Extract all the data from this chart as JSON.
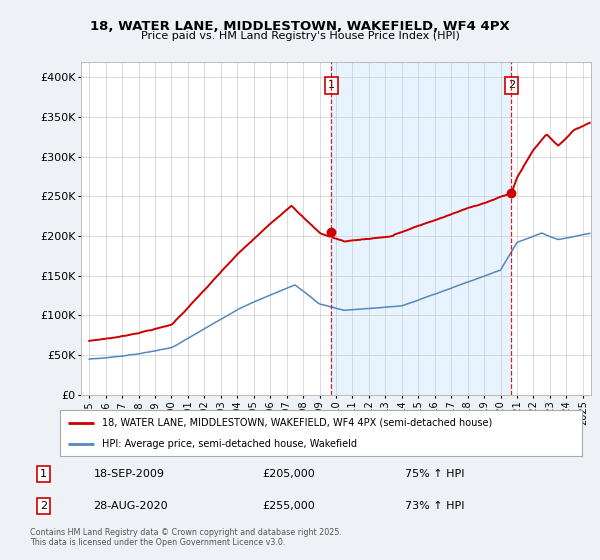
{
  "title_line1": "18, WATER LANE, MIDDLESTOWN, WAKEFIELD, WF4 4PX",
  "title_line2": "Price paid vs. HM Land Registry's House Price Index (HPI)",
  "xlim_start": 1994.5,
  "xlim_end": 2025.5,
  "ylim": [
    0,
    420000
  ],
  "yticks": [
    0,
    50000,
    100000,
    150000,
    200000,
    250000,
    300000,
    350000,
    400000
  ],
  "ytick_labels": [
    "£0",
    "£50K",
    "£100K",
    "£150K",
    "£200K",
    "£250K",
    "£300K",
    "£350K",
    "£400K"
  ],
  "xticks": [
    1995,
    1996,
    1997,
    1998,
    1999,
    2000,
    2001,
    2002,
    2003,
    2004,
    2005,
    2006,
    2007,
    2008,
    2009,
    2010,
    2011,
    2012,
    2013,
    2014,
    2015,
    2016,
    2017,
    2018,
    2019,
    2020,
    2021,
    2022,
    2023,
    2024,
    2025
  ],
  "sale1_x": 2009.72,
  "sale1_y": 205000,
  "sale2_x": 2020.66,
  "sale2_y": 255000,
  "red_color": "#cc0000",
  "blue_color": "#5588bb",
  "shade_color": "#ddeeff",
  "vline_color": "#cc0000",
  "legend_label_red": "18, WATER LANE, MIDDLESTOWN, WAKEFIELD, WF4 4PX (semi-detached house)",
  "legend_label_blue": "HPI: Average price, semi-detached house, Wakefield",
  "annotation1_date": "18-SEP-2009",
  "annotation1_price": "£205,000",
  "annotation1_hpi": "75% ↑ HPI",
  "annotation2_date": "28-AUG-2020",
  "annotation2_price": "£255,000",
  "annotation2_hpi": "73% ↑ HPI",
  "footer": "Contains HM Land Registry data © Crown copyright and database right 2025.\nThis data is licensed under the Open Government Licence v3.0.",
  "bg_color": "#eef2f7",
  "plot_bg_color": "#ffffff"
}
